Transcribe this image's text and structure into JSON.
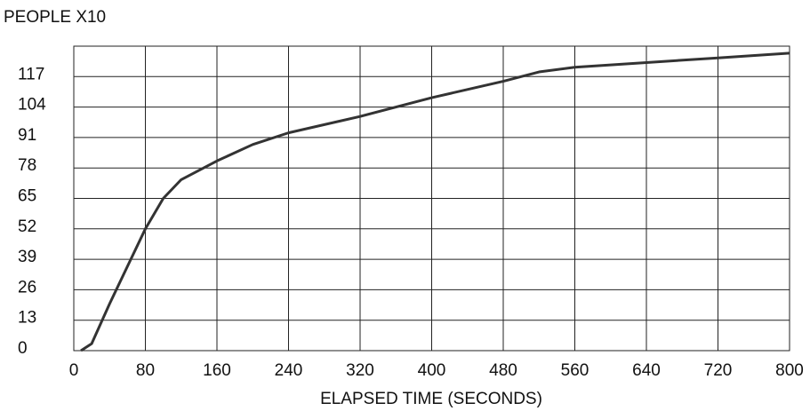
{
  "chart_data": {
    "type": "line",
    "title": "PEOPLE X10",
    "x_label": "ELAPSED TIME (SECONDS)",
    "x": [
      8,
      20,
      40,
      60,
      80,
      100,
      120,
      160,
      200,
      240,
      320,
      400,
      480,
      520,
      560,
      640,
      720,
      800
    ],
    "series": [
      {
        "color": "#333333",
        "values": [
          0,
          3,
          20,
          36,
          52,
          65,
          73,
          81,
          88,
          93,
          100,
          108,
          115,
          119,
          121,
          123,
          125,
          127
        ]
      }
    ],
    "xlim": [
      0,
      800
    ],
    "xticks": [
      0,
      80,
      160,
      240,
      320,
      400,
      480,
      560,
      640,
      720,
      800
    ],
    "ylim": [
      0,
      130
    ],
    "yticks": [
      0,
      13,
      26,
      39,
      52,
      65,
      78,
      91,
      104,
      117
    ],
    "grid": true
  }
}
